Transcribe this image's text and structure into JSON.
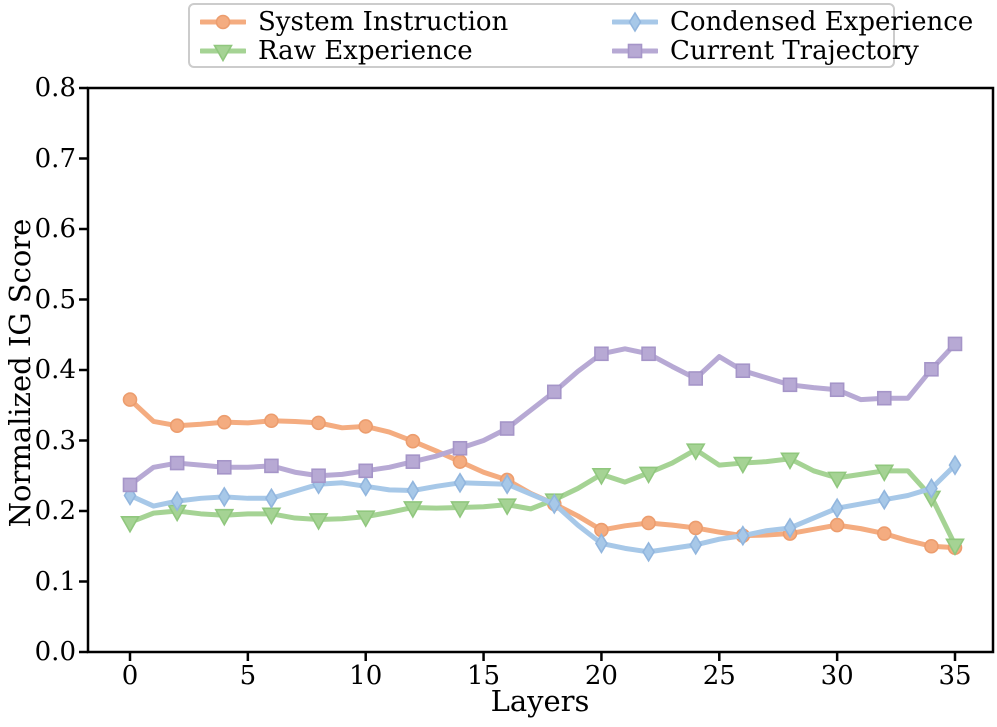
{
  "figure": {
    "background": "#ffffff",
    "frame_color": "#000000",
    "legend_border_color": "#cccccc"
  },
  "chart_data": {
    "type": "line",
    "title": "",
    "xlabel": "Layers",
    "ylabel": "Normalized IG Score",
    "xlim": [
      -1.8,
      36.6
    ],
    "ylim": [
      0.0,
      0.8
    ],
    "xticks": [
      0,
      5,
      10,
      15,
      20,
      25,
      30,
      35
    ],
    "yticks": [
      0.0,
      0.1,
      0.2,
      0.3,
      0.4,
      0.5,
      0.6,
      0.7,
      0.8
    ],
    "grid": false,
    "legend_position": "top-center",
    "legend_columns": 2,
    "marker_every": 2,
    "x": [
      0,
      1,
      2,
      3,
      4,
      5,
      6,
      7,
      8,
      9,
      10,
      11,
      12,
      13,
      14,
      15,
      16,
      17,
      18,
      19,
      20,
      21,
      22,
      23,
      24,
      25,
      26,
      27,
      28,
      29,
      30,
      31,
      32,
      33,
      34,
      35
    ],
    "series": [
      {
        "name": "System Instruction",
        "marker": "circle",
        "color": "#f4ac80",
        "edge_color": "#ec9d6e",
        "values": [
          0.358,
          0.327,
          0.321,
          0.323,
          0.326,
          0.325,
          0.328,
          0.327,
          0.325,
          0.318,
          0.32,
          0.312,
          0.299,
          0.285,
          0.27,
          0.255,
          0.244,
          0.225,
          0.21,
          0.193,
          0.173,
          0.179,
          0.183,
          0.18,
          0.176,
          0.17,
          0.165,
          0.166,
          0.168,
          0.174,
          0.18,
          0.175,
          0.168,
          0.158,
          0.15,
          0.148
        ]
      },
      {
        "name": "Raw Experience",
        "marker": "triangle-down",
        "color": "#a5d394",
        "edge_color": "#90c77e",
        "values": [
          0.184,
          0.197,
          0.2,
          0.196,
          0.194,
          0.196,
          0.196,
          0.19,
          0.188,
          0.189,
          0.192,
          0.198,
          0.205,
          0.204,
          0.205,
          0.206,
          0.209,
          0.203,
          0.216,
          0.232,
          0.252,
          0.241,
          0.254,
          0.268,
          0.287,
          0.265,
          0.268,
          0.27,
          0.274,
          0.257,
          0.247,
          0.252,
          0.257,
          0.257,
          0.22,
          0.152
        ]
      },
      {
        "name": "Condensed Experience",
        "marker": "thin-diamond",
        "color": "#a7c8e8",
        "edge_color": "#92b6de",
        "values": [
          0.222,
          0.207,
          0.214,
          0.218,
          0.22,
          0.218,
          0.218,
          0.228,
          0.238,
          0.24,
          0.235,
          0.23,
          0.229,
          0.235,
          0.24,
          0.239,
          0.238,
          0.224,
          0.21,
          0.18,
          0.154,
          0.147,
          0.142,
          0.147,
          0.152,
          0.16,
          0.165,
          0.172,
          0.176,
          0.19,
          0.204,
          0.21,
          0.216,
          0.222,
          0.232,
          0.265
        ]
      },
      {
        "name": "Current Trajectory",
        "marker": "square",
        "color": "#b7a9d4",
        "edge_color": "#a595c8",
        "values": [
          0.237,
          0.262,
          0.268,
          0.265,
          0.262,
          0.262,
          0.264,
          0.255,
          0.25,
          0.252,
          0.257,
          0.262,
          0.27,
          0.278,
          0.289,
          0.3,
          0.317,
          0.343,
          0.369,
          0.398,
          0.423,
          0.43,
          0.423,
          0.405,
          0.388,
          0.419,
          0.399,
          0.389,
          0.379,
          0.375,
          0.372,
          0.358,
          0.36,
          0.36,
          0.401,
          0.437
        ]
      }
    ]
  }
}
